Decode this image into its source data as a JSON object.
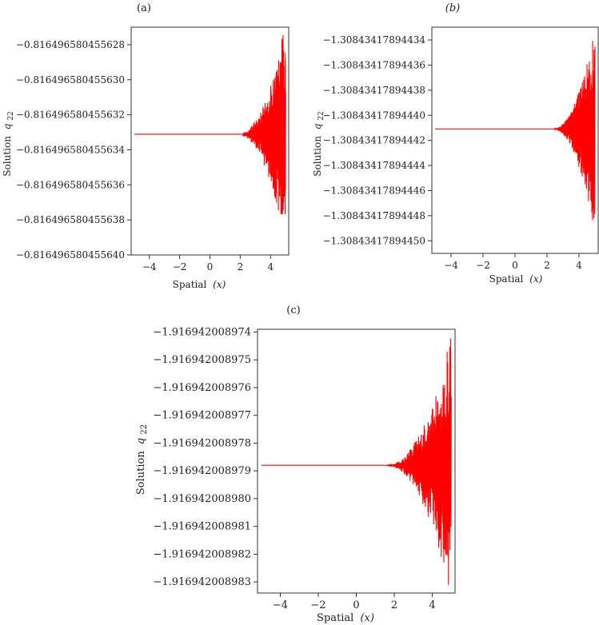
{
  "chart_data": [
    {
      "type": "line",
      "panel_label": "(a)",
      "xlabel_prefix": "Spatial",
      "xlabel_var": "(x)",
      "ylabel_prefix": "Solution",
      "ylabel_var": "q",
      "ylabel_sub": "22",
      "xlim": [
        -5.2,
        5.2
      ],
      "ylim": [
        -0.81649658045564,
        -0.816496580455627
      ],
      "x_ticks": [
        -4,
        -2,
        0,
        2,
        4
      ],
      "x_tick_labels": [
        "−4",
        "−2",
        "0",
        "2",
        "4"
      ],
      "y_ticks": [
        -0.81649658045564,
        -0.816496580455638,
        -0.816496580455636,
        -0.816496580455634,
        -0.816496580455632,
        -0.81649658045563,
        -0.816496580455628
      ],
      "y_tick_labels": [
        "−0.816496580455640",
        "−0.816496580455638",
        "−0.816496580455636",
        "−0.816496580455634",
        "−0.816496580455632",
        "−0.816496580455630",
        "−0.816496580455628"
      ],
      "baseline": -0.8164965804556331,
      "oscillation_start_x": 1.8,
      "oscillation_end_x": 5.0,
      "envelope_at_end": 6.5e-15,
      "color": "#ff0000",
      "series": [
        {
          "values": "computed"
        }
      ]
    },
    {
      "type": "line",
      "panel_label": "(b)",
      "xlabel_prefix": "Spatial",
      "xlabel_var": "(x)",
      "ylabel_prefix": "Solution",
      "ylabel_var": "q",
      "ylabel_sub": "22",
      "xlim": [
        -5.2,
        5.2
      ],
      "ylim": [
        -1.30843417894451,
        -1.30843417894433
      ],
      "x_ticks": [
        -4,
        -2,
        0,
        2,
        4
      ],
      "x_tick_labels": [
        "−4",
        "−2",
        "0",
        "2",
        "4"
      ],
      "y_ticks": [
        -1.3084341789445,
        -1.30843417894448,
        -1.30843417894446,
        -1.30843417894444,
        -1.30843417894442,
        -1.3084341789444,
        -1.30843417894438,
        -1.30843417894436,
        -1.30843417894434
      ],
      "y_tick_labels": [
        "−1.30843417894450",
        "−1.30843417894448",
        "−1.30843417894446",
        "−1.30843417894444",
        "−1.30843417894442",
        "−1.30843417894440",
        "−1.30843417894438",
        "−1.30843417894436",
        "−1.30843417894434"
      ],
      "baseline": -1.308434178944411,
      "oscillation_start_x": 2.3,
      "oscillation_end_x": 5.0,
      "envelope_at_end": 8.5e-14,
      "color": "#ff0000"
    },
    {
      "type": "line",
      "panel_label": "(c)",
      "xlabel_prefix": "Spatial",
      "xlabel_var": "(x)",
      "ylabel_prefix": "Solution",
      "ylabel_var": "q",
      "ylabel_sub": "22",
      "xlim": [
        -5.2,
        5.2
      ],
      "ylim": [
        -1.9169420089834,
        -1.9169420089739
      ],
      "x_ticks": [
        -4,
        -2,
        0,
        2,
        4
      ],
      "x_tick_labels": [
        "−4",
        "−2",
        "0",
        "2",
        "4"
      ],
      "y_ticks": [
        -1.916942008983,
        -1.916942008982,
        -1.916942008981,
        -1.91694200898,
        -1.916942008979,
        -1.916942008978,
        -1.916942008977,
        -1.916942008976,
        -1.916942008975,
        -1.916942008974
      ],
      "y_tick_labels": [
        "−1.916942008983",
        "−1.916942008982",
        "−1.916942008981",
        "−1.916942008980",
        "−1.916942008979",
        "−1.916942008978",
        "−1.916942008977",
        "−1.916942008976",
        "−1.916942008975",
        "−1.916942008974"
      ],
      "baseline": -1.9169420089788,
      "oscillation_start_x": 1.5,
      "oscillation_end_x": 5.0,
      "envelope_at_end": 4.8e-12,
      "color": "#ff0000"
    }
  ]
}
